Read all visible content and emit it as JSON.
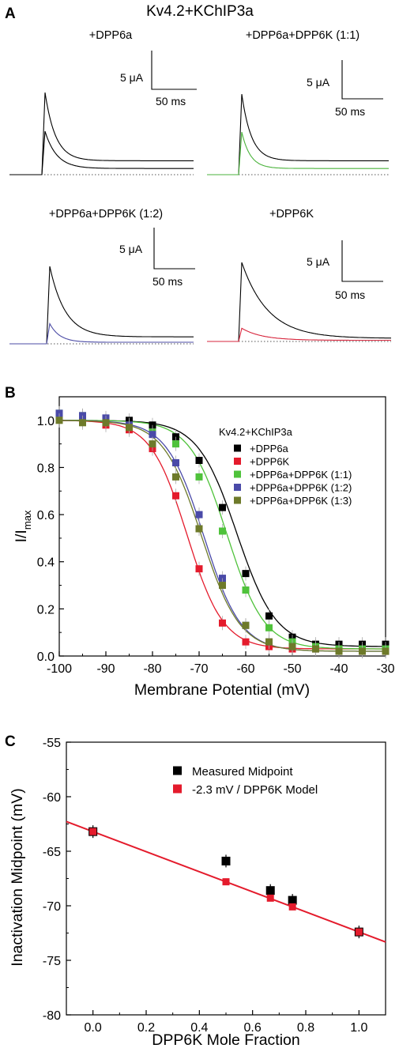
{
  "panel_a": {
    "letter": "A",
    "title": "Kv4.2+KChIP3a",
    "traces": [
      {
        "label": "+DPP6a",
        "scale_current": "5 μA",
        "scale_time": "50 ms",
        "control_peak": 10.6,
        "control_tau_ms": 18,
        "control_plateau": 1.8,
        "test_peak": 5.6,
        "test_tau_ms": 20,
        "test_plateau": 0.8,
        "control_color": "#000000",
        "test_color": "#000000"
      },
      {
        "label": "+DPP6a+DPP6K (1:1)",
        "scale_current": "5 μA",
        "scale_time": "50 ms",
        "control_peak": 10.4,
        "control_tau_ms": 18,
        "control_plateau": 1.8,
        "test_peak": 5.5,
        "test_tau_ms": 16,
        "test_plateau": 0.8,
        "control_color": "#000000",
        "test_color": "#4bb33c"
      },
      {
        "label": "+DPP6a+DPP6K (1:2)",
        "scale_current": "5 μA",
        "scale_time": "50 ms",
        "control_peak": 10.0,
        "control_tau_ms": 28,
        "control_plateau": 0.9,
        "test_peak": 2.6,
        "test_tau_ms": 18,
        "test_plateau": 0.2,
        "control_color": "#000000",
        "test_color": "#4b4ba5"
      },
      {
        "label": "+DPP6K",
        "scale_current": "5 μA",
        "scale_time": "50 ms",
        "control_peak": 10.2,
        "control_tau_ms": 45,
        "control_plateau": 0.4,
        "test_peak": 1.7,
        "test_tau_ms": 35,
        "test_plateau": 0.15,
        "control_color": "#000000",
        "test_color": "#d7263d"
      }
    ]
  },
  "panel_b": {
    "letter": "B",
    "ylabel_main": "I/I",
    "ylabel_sub": "max",
    "xlabel": "Membrane Potential (mV)",
    "legend_title": "Kv4.2+KChIP3a"
  },
  "panel_c": {
    "letter": "C",
    "ylabel": "Inactivation Midpoint (mV)",
    "xlabel": "DPP6K Mole Fraction"
  },
  "chart_data": [
    {
      "type": "line",
      "title": "Kv4.2+KChIP3a",
      "xlabel": "Membrane Potential (mV)",
      "ylabel": "I/Imax",
      "xlim": [
        -100,
        -30
      ],
      "ylim": [
        0.0,
        1.1
      ],
      "xticks": [
        -100,
        -90,
        -80,
        -70,
        -60,
        -50,
        -40,
        -30
      ],
      "yticks": [
        0.0,
        0.2,
        0.4,
        0.6,
        0.8,
        1.0
      ],
      "x": [
        -100,
        -95,
        -90,
        -85,
        -80,
        -75,
        -70,
        -65,
        -60,
        -55,
        -50,
        -45,
        -40,
        -35,
        -30
      ],
      "legend": "top-right",
      "series": [
        {
          "name": "+DPP6a",
          "color": "#000000",
          "v_half": -61.9,
          "k": 4.2,
          "bottom": 0.04,
          "values": [
            1.02,
            1.01,
            1.0,
            1.0,
            0.98,
            0.93,
            0.83,
            0.63,
            0.35,
            0.17,
            0.08,
            0.05,
            0.05,
            0.05,
            0.05
          ]
        },
        {
          "name": "+DPP6K",
          "color": "#e41b2c",
          "v_half": -72.6,
          "k": 3.9,
          "bottom": 0.03,
          "values": [
            1.01,
            1.0,
            0.98,
            0.96,
            0.88,
            0.68,
            0.37,
            0.14,
            0.06,
            0.04,
            0.03,
            0.03,
            0.03,
            0.02,
            0.02
          ]
        },
        {
          "name": "+DPP6a+DPP6K (1:1)",
          "color": "#4fc23b",
          "v_half": -64.0,
          "k": 4.0,
          "bottom": 0.03,
          "values": [
            1.03,
            1.02,
            1.0,
            0.98,
            0.95,
            0.9,
            0.76,
            0.53,
            0.28,
            0.12,
            0.06,
            0.04,
            0.03,
            0.03,
            0.03
          ]
        },
        {
          "name": "+DPP6a+DPP6K (1:2)",
          "color": "#4a4aa8",
          "v_half": -69.0,
          "k": 4.0,
          "bottom": 0.02,
          "values": [
            1.03,
            1.02,
            1.01,
            0.98,
            0.94,
            0.82,
            0.6,
            0.33,
            0.13,
            0.06,
            0.04,
            0.03,
            0.02,
            0.02,
            0.02
          ]
        },
        {
          "name": "+DPP6a+DPP6K (1:3)",
          "color": "#6e7a2a",
          "v_half": -69.5,
          "k": 4.1,
          "bottom": 0.02,
          "values": [
            1.0,
            0.99,
            0.99,
            0.97,
            0.9,
            0.76,
            0.54,
            0.3,
            0.13,
            0.06,
            0.04,
            0.03,
            0.02,
            0.02,
            0.02
          ]
        }
      ]
    },
    {
      "type": "scatter",
      "xlabel": "DPP6K Mole Fraction",
      "ylabel": "Inactivation Midpoint (mV)",
      "xlim": [
        -0.1,
        1.1
      ],
      "ylim": [
        -80,
        -55
      ],
      "xticks": [
        0.0,
        0.2,
        0.4,
        0.6,
        0.8,
        1.0
      ],
      "yticks": [
        -80,
        -75,
        -70,
        -65,
        -60,
        -55
      ],
      "legend": "top-right",
      "series": [
        {
          "name": "Measured Midpoint",
          "color": "#000000",
          "x": [
            0.0,
            0.5,
            0.667,
            0.75,
            1.0
          ],
          "y": [
            -63.2,
            -65.9,
            -68.6,
            -69.5,
            -72.4
          ]
        },
        {
          "name": "-2.3 mV / DPP6K Model",
          "color": "#e41b2c",
          "x": [
            0.0,
            0.5,
            0.667,
            0.75,
            1.0
          ],
          "y": [
            -63.2,
            -67.8,
            -69.3,
            -70.1,
            -72.4
          ]
        }
      ],
      "fit_line": {
        "slope": -9.2,
        "intercept": -63.2,
        "color": "#e41b2c"
      }
    }
  ]
}
